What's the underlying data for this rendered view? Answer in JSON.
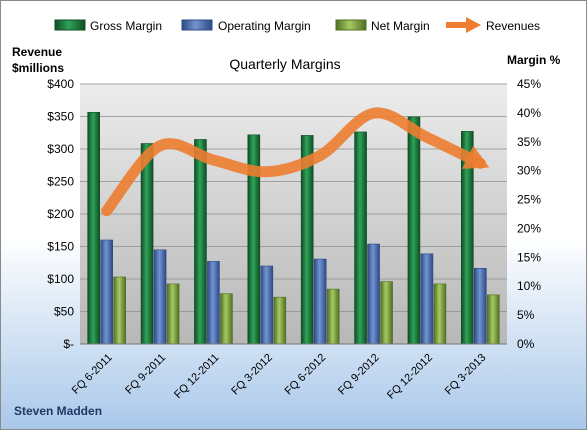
{
  "chart_data": {
    "type": "bar",
    "title": "Quarterly Margins",
    "company": "Steven Madden",
    "left_axis_title": "Revenue\n$millions",
    "right_axis_title": "Margin %",
    "categories": [
      "FQ 6-2011",
      "FQ 9-2011",
      "FQ 12-2011",
      "FQ 3-2012",
      "FQ 6-2012",
      "FQ 9-2012",
      "FQ 12-2012",
      "FQ 3-2013"
    ],
    "left_axis": {
      "min": 0,
      "max": 400,
      "step": 50,
      "tick_labels": [
        "$-",
        "$50",
        "$100",
        "$150",
        "$200",
        "$250",
        "$300",
        "$350",
        "$400"
      ]
    },
    "right_axis": {
      "min": 0,
      "max": 45,
      "step": 5,
      "tick_labels": [
        "0%",
        "5%",
        "10%",
        "15%",
        "20%",
        "25%",
        "30%",
        "35%",
        "40%",
        "45%"
      ]
    },
    "series": [
      {
        "name": "Gross Margin",
        "axis": "right",
        "unit": "%",
        "color": "#1e7a3c",
        "values": [
          40.1,
          34.7,
          35.4,
          36.2,
          36.1,
          36.7,
          39.3,
          36.8
        ]
      },
      {
        "name": "Operating Margin",
        "axis": "right",
        "unit": "%",
        "color": "#4a6fb3",
        "values": [
          18.0,
          16.3,
          14.3,
          13.5,
          14.7,
          17.3,
          15.6,
          13.1
        ]
      },
      {
        "name": "Net Margin",
        "axis": "right",
        "unit": "%",
        "color": "#7fa33e",
        "values": [
          11.6,
          10.4,
          8.7,
          8.1,
          9.5,
          10.8,
          10.4,
          8.5
        ]
      },
      {
        "name": "Revenues",
        "axis": "left",
        "unit": "$M",
        "type": "line",
        "color": "#ed7d31",
        "values": [
          205,
          305,
          283,
          265,
          290,
          355,
          318,
          278
        ]
      }
    ],
    "legend_position": "top",
    "grid": true
  }
}
